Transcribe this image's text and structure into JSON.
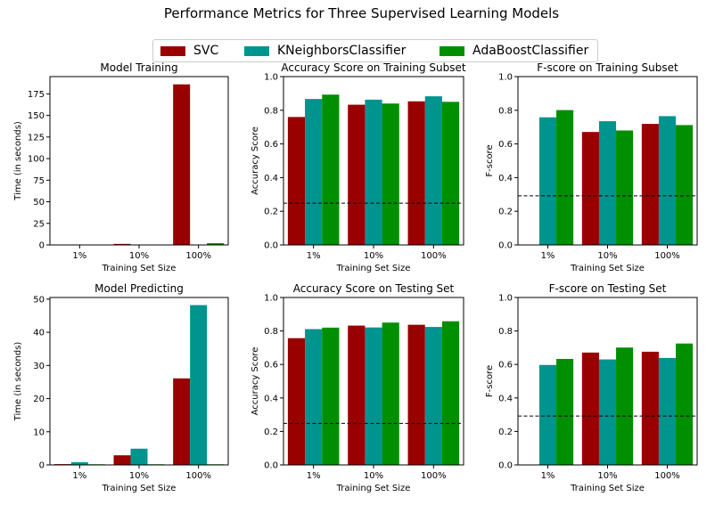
{
  "figure": {
    "title": "Performance Metrics for Three Supervised Learning Models"
  },
  "legend": {
    "items": [
      {
        "label": "SVC",
        "color": "#990000"
      },
      {
        "label": "KNeighborsClassifier",
        "color": "#00948f"
      },
      {
        "label": "AdaBoostClassifier",
        "color": "#008f00"
      }
    ]
  },
  "chart_data": [
    {
      "type": "bar",
      "title": "Model Training",
      "xlabel": "Training Set Size",
      "ylabel": "Time (in seconds)",
      "categories": [
        "1%",
        "10%",
        "100%"
      ],
      "ylim": [
        0,
        195
      ],
      "yticks": [
        0,
        25,
        50,
        75,
        100,
        125,
        150,
        175
      ],
      "series": [
        {
          "name": "SVC",
          "values": [
            0.03,
            1.2,
            186.0
          ]
        },
        {
          "name": "KNeighborsClassifier",
          "values": [
            0.01,
            0.02,
            0.5
          ]
        },
        {
          "name": "AdaBoostClassifier",
          "values": [
            0.3,
            0.5,
            2.0
          ]
        }
      ],
      "hline": null
    },
    {
      "type": "bar",
      "title": "Accuracy Score on Training Subset",
      "xlabel": "Training Set Size",
      "ylabel": "Accuracy Score",
      "categories": [
        "1%",
        "10%",
        "100%"
      ],
      "ylim": [
        0,
        1.0
      ],
      "yticks": [
        0.0,
        0.2,
        0.4,
        0.6,
        0.8,
        1.0
      ],
      "series": [
        {
          "name": "SVC",
          "values": [
            0.76,
            0.833,
            0.853
          ]
        },
        {
          "name": "KNeighborsClassifier",
          "values": [
            0.867,
            0.863,
            0.883
          ]
        },
        {
          "name": "AdaBoostClassifier",
          "values": [
            0.893,
            0.84,
            0.85
          ]
        }
      ],
      "hline": 0.2478
    },
    {
      "type": "bar",
      "title": "F-score on Training Subset",
      "xlabel": "Training Set Size",
      "ylabel": "F-score",
      "categories": [
        "1%",
        "10%",
        "100%"
      ],
      "ylim": [
        0,
        1.0
      ],
      "yticks": [
        0.0,
        0.2,
        0.4,
        0.6,
        0.8,
        1.0
      ],
      "series": [
        {
          "name": "SVC",
          "values": [
            0.0,
            0.671,
            0.719
          ]
        },
        {
          "name": "KNeighborsClassifier",
          "values": [
            0.758,
            0.735,
            0.765
          ]
        },
        {
          "name": "AdaBoostClassifier",
          "values": [
            0.801,
            0.68,
            0.712
          ]
        }
      ],
      "hline": 0.2917
    },
    {
      "type": "bar",
      "title": "Model Predicting",
      "xlabel": "Training Set Size",
      "ylabel": "Time (in seconds)",
      "categories": [
        "1%",
        "10%",
        "100%"
      ],
      "ylim": [
        0,
        50.5
      ],
      "yticks": [
        0,
        10,
        20,
        30,
        40,
        50
      ],
      "series": [
        {
          "name": "SVC",
          "values": [
            0.25,
            2.9,
            26.1
          ]
        },
        {
          "name": "KNeighborsClassifier",
          "values": [
            0.8,
            4.9,
            48.2
          ]
        },
        {
          "name": "AdaBoostClassifier",
          "values": [
            0.2,
            0.2,
            0.2
          ]
        }
      ],
      "hline": null
    },
    {
      "type": "bar",
      "title": "Accuracy Score on Testing Set",
      "xlabel": "Training Set Size",
      "ylabel": "Accuracy Score",
      "categories": [
        "1%",
        "10%",
        "100%"
      ],
      "ylim": [
        0,
        1.0
      ],
      "yticks": [
        0.0,
        0.2,
        0.4,
        0.6,
        0.8,
        1.0
      ],
      "series": [
        {
          "name": "SVC",
          "values": [
            0.757,
            0.832,
            0.837
          ]
        },
        {
          "name": "KNeighborsClassifier",
          "values": [
            0.811,
            0.821,
            0.824
          ]
        },
        {
          "name": "AdaBoostClassifier",
          "values": [
            0.82,
            0.85,
            0.858
          ]
        }
      ],
      "hline": 0.2478
    },
    {
      "type": "bar",
      "title": "F-score on Testing Set",
      "xlabel": "Training Set Size",
      "ylabel": "F-score",
      "categories": [
        "1%",
        "10%",
        "100%"
      ],
      "ylim": [
        0,
        1.0
      ],
      "yticks": [
        0.0,
        0.2,
        0.4,
        0.6,
        0.8,
        1.0
      ],
      "series": [
        {
          "name": "SVC",
          "values": [
            0.0,
            0.671,
            0.676
          ]
        },
        {
          "name": "KNeighborsClassifier",
          "values": [
            0.597,
            0.63,
            0.639
          ]
        },
        {
          "name": "AdaBoostClassifier",
          "values": [
            0.633,
            0.701,
            0.725
          ]
        }
      ],
      "hline": 0.2917
    }
  ]
}
